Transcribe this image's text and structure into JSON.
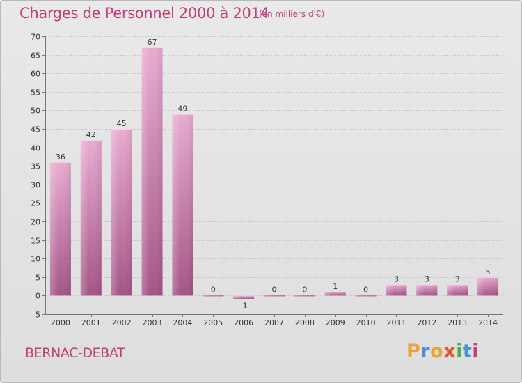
{
  "header": {
    "title": "Charges de Personnel 2000 à 2014",
    "subtitle": "(en milliers d'€)"
  },
  "footer": {
    "place": "BERNAC-DEBAT",
    "brand": "Proxiti",
    "brand_colors": [
      "#e9a33a",
      "#4f8dd6",
      "#e9a33a",
      "#e3552b",
      "#4fb04a",
      "#4f8dd6",
      "#c0407a"
    ]
  },
  "colors": {
    "bar_light": "#e6a7cd",
    "bar_dark": "#a45586",
    "text_accent": "#c0407a"
  },
  "chart_data": {
    "type": "bar",
    "title": "Charges de Personnel 2000 à 2014",
    "subtitle": "(en milliers d'€)",
    "xlabel": "",
    "ylabel": "",
    "categories": [
      "2000",
      "2001",
      "2002",
      "2003",
      "2004",
      "2005",
      "2006",
      "2007",
      "2008",
      "2009",
      "2010",
      "2011",
      "2012",
      "2013",
      "2014"
    ],
    "values": [
      36,
      42,
      45,
      67,
      49,
      0,
      -1,
      0,
      0,
      1,
      0,
      3,
      3,
      3,
      5
    ],
    "ylim": [
      -5,
      70
    ],
    "yticks": [
      -5,
      0,
      5,
      10,
      15,
      20,
      25,
      30,
      35,
      40,
      45,
      50,
      55,
      60,
      65,
      70
    ],
    "grid": true
  }
}
